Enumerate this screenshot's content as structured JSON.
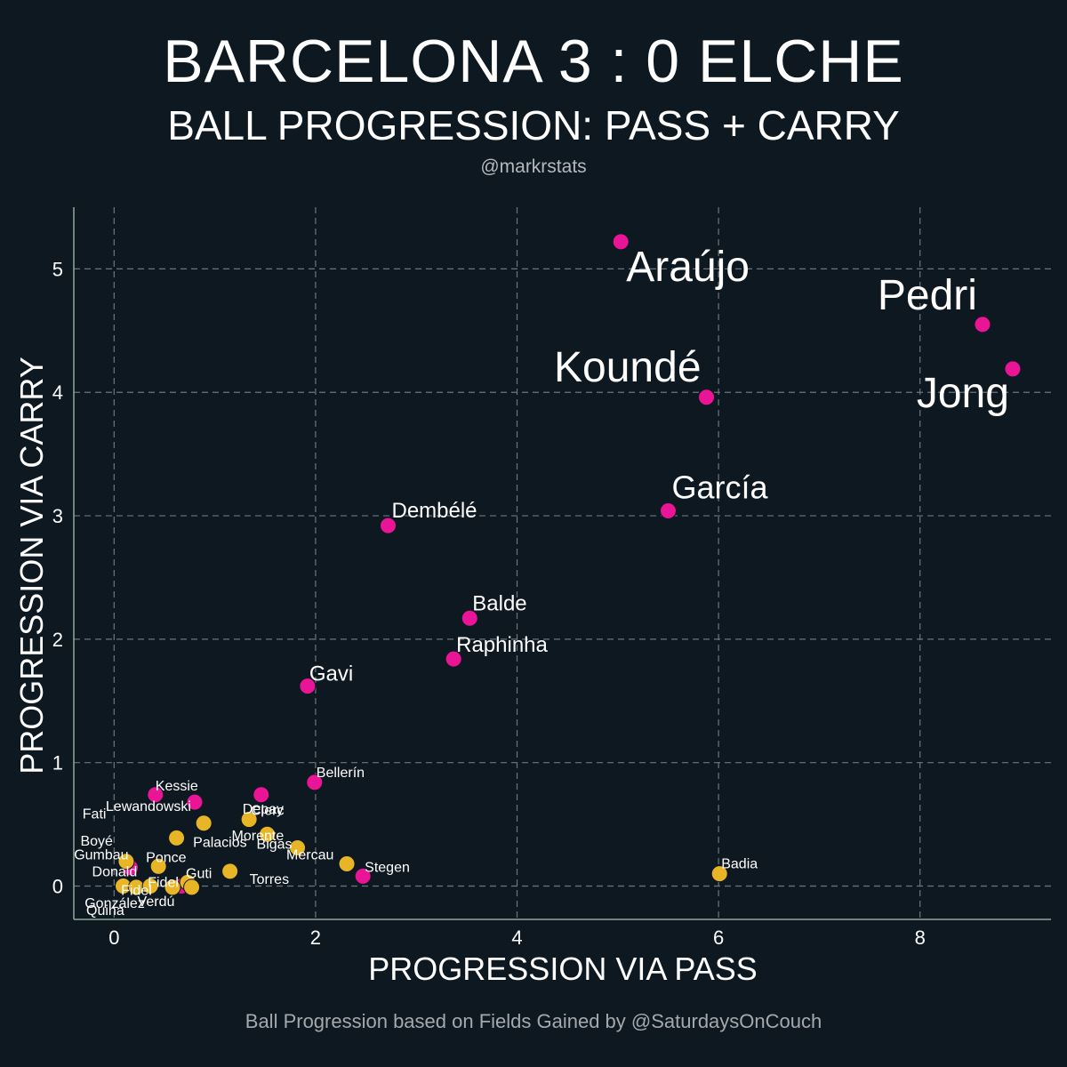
{
  "header": {
    "title": "BARCELONA 3 : 0 ELCHE",
    "subtitle": "BALL PROGRESSION: PASS + CARRY",
    "handle": "@markrstats"
  },
  "footer": {
    "credit": "Ball Progression based on Fields Gained by @SaturdaysOnCouch"
  },
  "colors": {
    "background": "#0e1820",
    "barcelona": "#ea1497",
    "elche": "#e8b527",
    "grid": "#6e757b",
    "axis": "#8fa89a"
  },
  "chart_data": {
    "type": "scatter",
    "title": "BALL PROGRESSION: PASS + CARRY",
    "xlabel": "PROGRESSION VIA PASS",
    "ylabel": "PROGRESSION VIA CARRY",
    "xlim": [
      -0.4,
      9.3
    ],
    "ylim": [
      -0.27,
      5.5
    ],
    "xticks": [
      0,
      2,
      4,
      6,
      8
    ],
    "yticks": [
      0,
      1,
      2,
      3,
      4,
      5
    ],
    "grid": true,
    "series": [
      {
        "name": "Barcelona",
        "color": "#ea1497",
        "points": [
          {
            "label": "Araújo",
            "x": 5.03,
            "y": 5.22,
            "size": "large"
          },
          {
            "label": "Pedri",
            "x": 8.62,
            "y": 4.55,
            "size": "large"
          },
          {
            "label": "Jong",
            "x": 8.92,
            "y": 4.19,
            "size": "large"
          },
          {
            "label": "Koundé",
            "x": 5.88,
            "y": 3.96,
            "size": "large"
          },
          {
            "label": "García",
            "x": 5.5,
            "y": 3.04,
            "size": "medium"
          },
          {
            "label": "Dembélé",
            "x": 2.72,
            "y": 2.92,
            "size": "small"
          },
          {
            "label": "Balde",
            "x": 3.53,
            "y": 2.17,
            "size": "small"
          },
          {
            "label": "Raphinha",
            "x": 3.37,
            "y": 1.84,
            "size": "small"
          },
          {
            "label": "Gavi",
            "x": 1.92,
            "y": 1.62,
            "size": "small"
          },
          {
            "label": "Bellerín",
            "x": 1.99,
            "y": 0.84,
            "size": "tiny"
          },
          {
            "label": "Depay",
            "x": 1.46,
            "y": 0.74,
            "size": "tiny"
          },
          {
            "label": "Kessie",
            "x": 0.41,
            "y": 0.74,
            "size": "tiny"
          },
          {
            "label": "Lewandowski",
            "x": 0.8,
            "y": 0.68,
            "size": "tiny"
          },
          {
            "label": "Stegen",
            "x": 2.47,
            "y": 0.08,
            "size": "tiny"
          },
          {
            "label": "Fati",
            "x": 0.16,
            "y": 0.15,
            "size": "tiny"
          },
          {
            "label": "Fidel",
            "x": 0.67,
            "y": 0.0,
            "size": "tiny"
          }
        ]
      },
      {
        "name": "Elche",
        "color": "#e8b527",
        "points": [
          {
            "label": "Clerc",
            "x": 1.34,
            "y": 0.54,
            "size": "tiny"
          },
          {
            "label": "Palacios",
            "x": 0.89,
            "y": 0.51,
            "size": "tiny"
          },
          {
            "label": "Gumbau",
            "x": 0.62,
            "y": 0.39,
            "size": "tiny"
          },
          {
            "label": "Morente",
            "x": 1.52,
            "y": 0.42,
            "size": "tiny"
          },
          {
            "label": "Bigas",
            "x": 1.82,
            "y": 0.31,
            "size": "tiny"
          },
          {
            "label": "Badia",
            "x": 6.01,
            "y": 0.1,
            "size": "tiny"
          },
          {
            "label": "Torres",
            "x": 1.15,
            "y": 0.12,
            "size": "tiny"
          },
          {
            "label": "Mercau",
            "x": 2.31,
            "y": 0.18,
            "size": "tiny"
          },
          {
            "label": "Ponce",
            "x": 0.44,
            "y": 0.16,
            "size": "tiny"
          },
          {
            "label": "Boyé",
            "x": 0.12,
            "y": 0.2,
            "size": "tiny"
          },
          {
            "label": "Guti",
            "x": 0.73,
            "y": 0.03,
            "size": "tiny"
          },
          {
            "label": "Verdú",
            "x": 0.77,
            "y": -0.01,
            "size": "tiny"
          },
          {
            "label": "Donald",
            "x": 0.09,
            "y": 0.0,
            "size": "tiny"
          },
          {
            "label": "González",
            "x": 0.22,
            "y": -0.01,
            "size": "tiny"
          },
          {
            "label": "Quina",
            "x": 0.58,
            "y": -0.01,
            "size": "tiny"
          },
          {
            "label": "Fidel",
            "x": 0.36,
            "y": 0.0,
            "size": "tiny"
          }
        ]
      }
    ]
  }
}
